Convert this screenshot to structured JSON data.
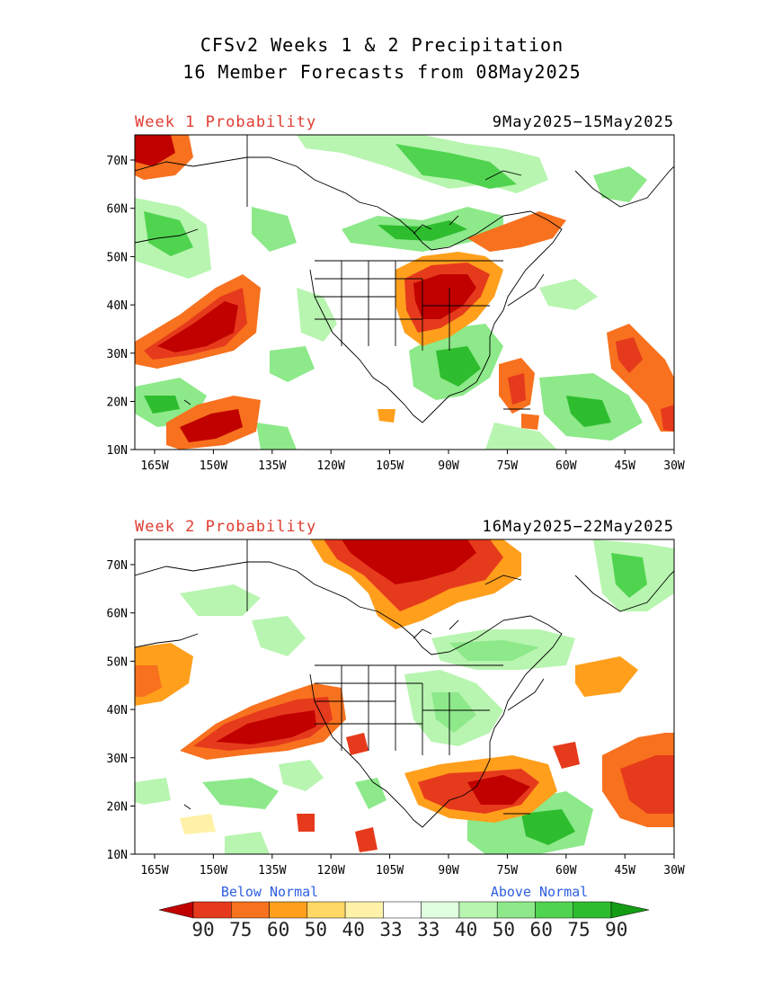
{
  "title_line1": "CFSv2 Weeks 1 & 2 Precipitation",
  "title_line2": "16 Member Forecasts from 08May2025",
  "panels": [
    {
      "label": "Week 1 Probability",
      "dates": "9May2025−15May2025"
    },
    {
      "label": "Week 2 Probability",
      "dates": "16May2025−22May2025"
    }
  ],
  "lon_ticks": [
    "165W",
    "150W",
    "135W",
    "120W",
    "105W",
    "90W",
    "75W",
    "60W",
    "45W",
    "30W"
  ],
  "lat_ticks": [
    "70N",
    "60N",
    "50N",
    "40N",
    "30N",
    "20N",
    "10N"
  ],
  "legend": {
    "below_label": "Below Normal",
    "above_label": "Above Normal",
    "values": [
      "90",
      "75",
      "60",
      "50",
      "40",
      "33",
      "33",
      "40",
      "50",
      "60",
      "75",
      "90"
    ],
    "colors": [
      "#c10000",
      "#e63a1c",
      "#f7711e",
      "#ff9f1c",
      "#ffd866",
      "#fff2a8",
      "#ffffff",
      "#e0ffe0",
      "#b8f5b0",
      "#8de98a",
      "#50d450",
      "#2ebd2e",
      "#149c14"
    ]
  },
  "colors": {
    "title_red": "#e03c31",
    "legend_label_blue": "#2f5fe0",
    "map_line": "#000000"
  }
}
